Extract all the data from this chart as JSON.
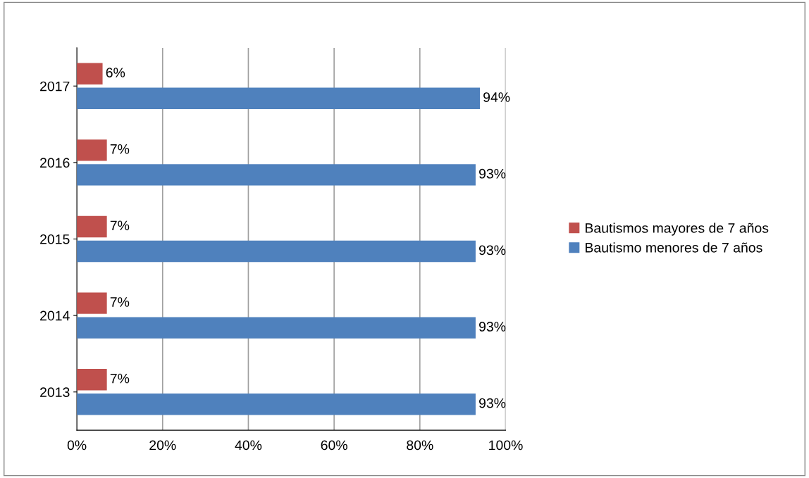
{
  "chart_data": {
    "type": "bar",
    "orientation": "horizontal",
    "categories": [
      "2017",
      "2016",
      "2015",
      "2014",
      "2013"
    ],
    "series": [
      {
        "name": "Bautismos mayores de 7 años",
        "color": "#c0504d",
        "values": [
          6,
          7,
          7,
          7,
          7
        ],
        "value_labels": [
          "6%",
          "7%",
          "7%",
          "7%",
          "7%"
        ]
      },
      {
        "name": "Bautismo menores de 7 años",
        "color": "#4f81bd",
        "values": [
          94,
          93,
          93,
          93,
          93
        ],
        "value_labels": [
          "94%",
          "93%",
          "93%",
          "93%",
          "93%"
        ]
      }
    ],
    "xlim": [
      0,
      100
    ],
    "xticks": [
      {
        "value": 0,
        "label": "0%"
      },
      {
        "value": 20,
        "label": "20%"
      },
      {
        "value": 40,
        "label": "40%"
      },
      {
        "value": 60,
        "label": "60%"
      },
      {
        "value": 80,
        "label": "80%"
      },
      {
        "value": 100,
        "label": "100%"
      }
    ],
    "grid": "x",
    "legend": "right"
  }
}
